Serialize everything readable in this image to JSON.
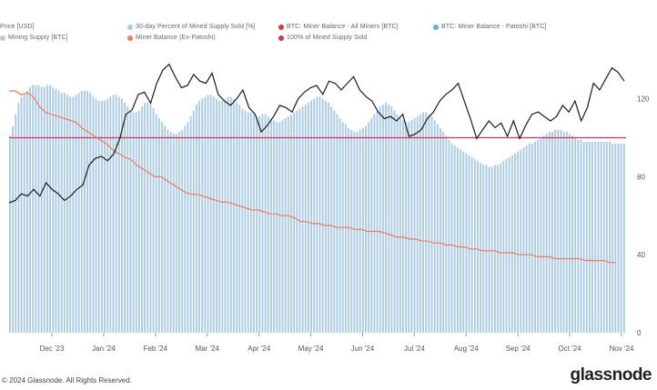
{
  "legend": {
    "price_label": "Price [USD]",
    "percent_sold_label": "30-day Percent of Mined Supply Sold [%]",
    "btc_all_miners_label": "BTC: Miner Balance - All Miners [BTC]",
    "btc_patoshi_label": "BTC: Miner Balance - Patoshi [BTC]",
    "mining_supply_label": "Mining Supply [BTC]",
    "ex_patoshi_label": "Miner Balance (Ex-Patoshi)",
    "hundred_pct_label": "100% of Mined Supply Sold"
  },
  "colors": {
    "bar": "#a9cbe8",
    "price": "#1c1c1c",
    "miner_balance": "#f07c58",
    "threshold": "#c9375e",
    "all_miners_dot": "#d93a2e",
    "patoshi_dot": "#58b7d9",
    "mining_supply_dot": "#c6c6c6",
    "threshold_dot": "#c9375e"
  },
  "footer": {
    "copyright": "© 2024 Glassnode. All Rights Reserved.",
    "brand": "glassnode"
  },
  "chart_data": {
    "type": "bar",
    "title": "",
    "x_labels": [
      "Dec '23",
      "Jan '24",
      "Feb '24",
      "Mar '24",
      "Apr '24",
      "May '24",
      "Jun '24",
      "Jul '24",
      "Aug '24",
      "Sep '24",
      "Oct '24",
      "Nov '24"
    ],
    "y_right": {
      "ticks": [
        0,
        40,
        80,
        120
      ],
      "range": [
        0,
        145
      ]
    },
    "threshold": {
      "label": "100% of Mined Supply Sold",
      "value": 100
    },
    "series": [
      {
        "name": "30-day Percent of Mined Supply Sold [%]",
        "type": "bar",
        "values": [
          101,
          106,
          112,
          118,
          121,
          122,
          124,
          126,
          127,
          127,
          127,
          126,
          126,
          127,
          127,
          126,
          125,
          124,
          123,
          123,
          122,
          121,
          121,
          122,
          123,
          124,
          124,
          124,
          123,
          121,
          120,
          119,
          119,
          119,
          120,
          121,
          122,
          122,
          121,
          120,
          118,
          116,
          114,
          113,
          113,
          114,
          116,
          118,
          118,
          117,
          115,
          112,
          110,
          108,
          106,
          104,
          103,
          102,
          102,
          103,
          104,
          106,
          108,
          111,
          114,
          117,
          119,
          120,
          121,
          122,
          122,
          121,
          120,
          119,
          119,
          120,
          121,
          121,
          120,
          118,
          117,
          115,
          114,
          113,
          113,
          112,
          111,
          111,
          112,
          112,
          111,
          110,
          109,
          108,
          108,
          109,
          110,
          111,
          112,
          113,
          114,
          115,
          116,
          117,
          118,
          119,
          120,
          121,
          121,
          120,
          119,
          118,
          116,
          114,
          112,
          110,
          108,
          107,
          105,
          104,
          103,
          103,
          104,
          105,
          106,
          108,
          110,
          112,
          114,
          116,
          117,
          118,
          117,
          116,
          114,
          112,
          110,
          109,
          108,
          108,
          109,
          110,
          111,
          112,
          113,
          113,
          112,
          111,
          109,
          107,
          105,
          103,
          101,
          99,
          97,
          96,
          95,
          94,
          93,
          92,
          91,
          90,
          89,
          88,
          87,
          86,
          86,
          85,
          85,
          86,
          86,
          87,
          88,
          89,
          90,
          91,
          92,
          93,
          94,
          95,
          96,
          97,
          97,
          98,
          99,
          100,
          101,
          102,
          103,
          103,
          104,
          104,
          104,
          103,
          103,
          102,
          101,
          100,
          99,
          99,
          98,
          98,
          98,
          98,
          98,
          98,
          98,
          98,
          98,
          98,
          97,
          97,
          97,
          97,
          97
        ]
      },
      {
        "name": "Price [USD]",
        "type": "line",
        "values": [
          41500,
          42000,
          43500,
          43000,
          44500,
          43000,
          46000,
          44500,
          43500,
          42000,
          43000,
          44500,
          45500,
          50000,
          51500,
          52000,
          51000,
          52500,
          56000,
          61500,
          62500,
          66000,
          66500,
          64000,
          68500,
          71500,
          72800,
          70000,
          67500,
          68000,
          70500,
          69000,
          68500,
          70800,
          66000,
          64500,
          63500,
          65000,
          67000,
          63000,
          61500,
          57500,
          59000,
          61000,
          63500,
          63000,
          62000,
          65000,
          66500,
          67500,
          68000,
          66000,
          69000,
          68500,
          67000,
          68500,
          70000,
          67000,
          65500,
          64500,
          62000,
          60500,
          61000,
          60000,
          61500,
          56500,
          57000,
          58000,
          60500,
          62000,
          64500,
          66000,
          67000,
          68500,
          64500,
          60500,
          56000,
          58000,
          60000,
          58500,
          59500,
          56500,
          60000,
          56000,
          59000,
          61500,
          62000,
          61000,
          60000,
          61000,
          63500,
          62000,
          64500,
          60000,
          63000,
          68500,
          67000,
          69500,
          72000,
          71000,
          69000
        ]
      },
      {
        "name": "Miner Balance (Ex-Patoshi)",
        "type": "line",
        "values": [
          124,
          124,
          122,
          123,
          121,
          116,
          113,
          112,
          111,
          110,
          109,
          108,
          105,
          103,
          101,
          99,
          97,
          94,
          92,
          90,
          89,
          86,
          84,
          82,
          80,
          80,
          78,
          76,
          74,
          72,
          71,
          71,
          70,
          69,
          68,
          67,
          67,
          66,
          65,
          64,
          63,
          63,
          62,
          61,
          61,
          60,
          60,
          59,
          57,
          57,
          56,
          56,
          55,
          55,
          54,
          54,
          54,
          53,
          53,
          52,
          52,
          52,
          51,
          50,
          49,
          49,
          48,
          48,
          47,
          47,
          46,
          46,
          45,
          45,
          44,
          44,
          43,
          43,
          42,
          42,
          42,
          41,
          41,
          41,
          40,
          40,
          40,
          39,
          39,
          39,
          38,
          38,
          38,
          38,
          38,
          37,
          37,
          37,
          37,
          36,
          36
        ]
      }
    ]
  }
}
